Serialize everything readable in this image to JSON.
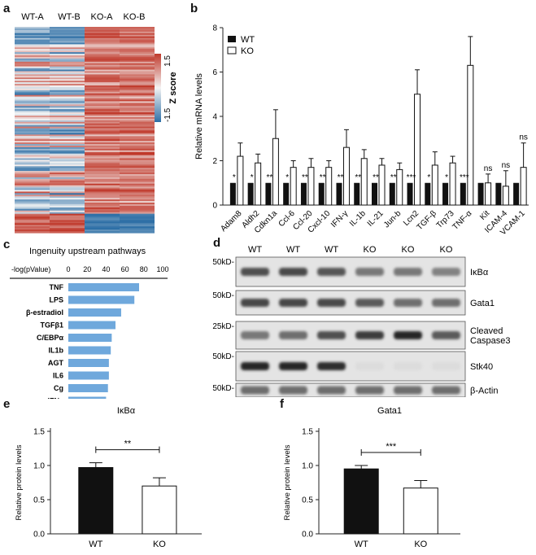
{
  "panel_labels": {
    "a": "a",
    "b": "b",
    "c": "c",
    "d": "d",
    "e": "e",
    "f": "f"
  },
  "heatmap": {
    "columns": [
      "WT-A",
      "WT-B",
      "KO-A",
      "KO-B"
    ],
    "colorbar": {
      "max_label": "1.5",
      "min_label": "-1.5",
      "title": "Z score"
    },
    "colors": {
      "high": "#c0392b",
      "mid": "#f4f4f4",
      "low": "#2e6fa6"
    }
  },
  "chart_data": [
    {
      "id": "b",
      "type": "bar",
      "ylabel": "Relative mRNA levels",
      "ylim": [
        0,
        8
      ],
      "yticks": [
        "0",
        "2",
        "4",
        "6",
        "8"
      ],
      "categories": [
        "Adam8",
        "Aldh2",
        "Cdkn1a",
        "Ccl-6",
        "Ccl-20",
        "Cxcl-10",
        "IFN-γ",
        "IL-1b",
        "IL-21",
        "Jun-b",
        "Lcn2",
        "TGF-β",
        "Trp73",
        "TNF-α",
        "Kit",
        "ICAM-4",
        "VCAM-1"
      ],
      "series": [
        {
          "name": "WT",
          "color": "#111111",
          "values": [
            1,
            1,
            1,
            1,
            1,
            1,
            1,
            1,
            1,
            1,
            1,
            1,
            1,
            1,
            1,
            1,
            1
          ]
        },
        {
          "name": "KO",
          "color": "#ffffff",
          "values": [
            2.2,
            1.9,
            3.0,
            1.7,
            1.7,
            1.7,
            2.6,
            2.1,
            1.8,
            1.6,
            5.0,
            1.8,
            1.9,
            6.3,
            1.0,
            0.85,
            1.7
          ],
          "errors": [
            0.6,
            0.4,
            1.3,
            0.3,
            0.4,
            0.3,
            0.8,
            0.4,
            0.3,
            0.3,
            1.1,
            0.6,
            0.3,
            1.3,
            0.4,
            0.7,
            1.1
          ]
        }
      ],
      "significance": [
        "*",
        "*",
        "**",
        "*",
        "**",
        "**",
        "**",
        "**",
        "**",
        "**",
        "***",
        "*",
        "*",
        "***",
        "ns",
        "ns",
        "ns"
      ],
      "legend": "top-left"
    },
    {
      "id": "c",
      "type": "bar",
      "orientation": "horizontal",
      "title": "Ingenuity upstream pathways",
      "xlabel": "-log(pValue)",
      "xlim": [
        0,
        100
      ],
      "xticks": [
        "0",
        "20",
        "40",
        "60",
        "80",
        "100"
      ],
      "categories": [
        "TNF",
        "LPS",
        "β-estradiol",
        "TGFβ1",
        "C/EBPα",
        "IL1b",
        "AGT",
        "IL6",
        "Cg",
        "IFNγ"
      ],
      "values": [
        75,
        70,
        56,
        50,
        46,
        45,
        43,
        43,
        42,
        40
      ],
      "color": "#6fa8dc"
    },
    {
      "id": "e",
      "type": "bar",
      "title": "IκBα",
      "ylabel": "Relative protein levels",
      "ylim": [
        0,
        1.5
      ],
      "yticks": [
        "0.0",
        "0.5",
        "1.0",
        "1.5"
      ],
      "categories": [
        "WT",
        "KO"
      ],
      "values": [
        0.97,
        0.7
      ],
      "errors": [
        0.07,
        0.12
      ],
      "colors": [
        "#111111",
        "#ffffff"
      ],
      "significance": "**"
    },
    {
      "id": "f",
      "type": "bar",
      "title": "Gata1",
      "ylabel": "Relative protein levels",
      "ylim": [
        0,
        1.5
      ],
      "yticks": [
        "0.0",
        "0.5",
        "1.0",
        "1.5"
      ],
      "categories": [
        "WT",
        "KO"
      ],
      "values": [
        0.95,
        0.67
      ],
      "errors": [
        0.05,
        0.11
      ],
      "colors": [
        "#111111",
        "#ffffff"
      ],
      "significance": "***"
    }
  ],
  "blot": {
    "lanes": [
      "WT",
      "WT",
      "WT",
      "KO",
      "KO",
      "KO"
    ],
    "rows": [
      {
        "marker": "50kD-",
        "label": "IκBα",
        "intensity": [
          0.75,
          0.78,
          0.72,
          0.55,
          0.55,
          0.5
        ]
      },
      {
        "marker": "50kD-",
        "label": "Gata1",
        "intensity": [
          0.8,
          0.8,
          0.78,
          0.7,
          0.6,
          0.6
        ]
      },
      {
        "marker": "25kD-",
        "label": "Cleaved\nCaspase3",
        "intensity": [
          0.55,
          0.6,
          0.75,
          0.85,
          0.95,
          0.7
        ]
      },
      {
        "marker": "50kD-",
        "label": "Stk40",
        "intensity": [
          0.95,
          0.95,
          0.92,
          0.05,
          0.05,
          0.05
        ]
      },
      {
        "marker": "50kD-",
        "label": "β-Actin",
        "intensity": [
          0.6,
          0.6,
          0.6,
          0.6,
          0.6,
          0.6
        ]
      }
    ]
  }
}
